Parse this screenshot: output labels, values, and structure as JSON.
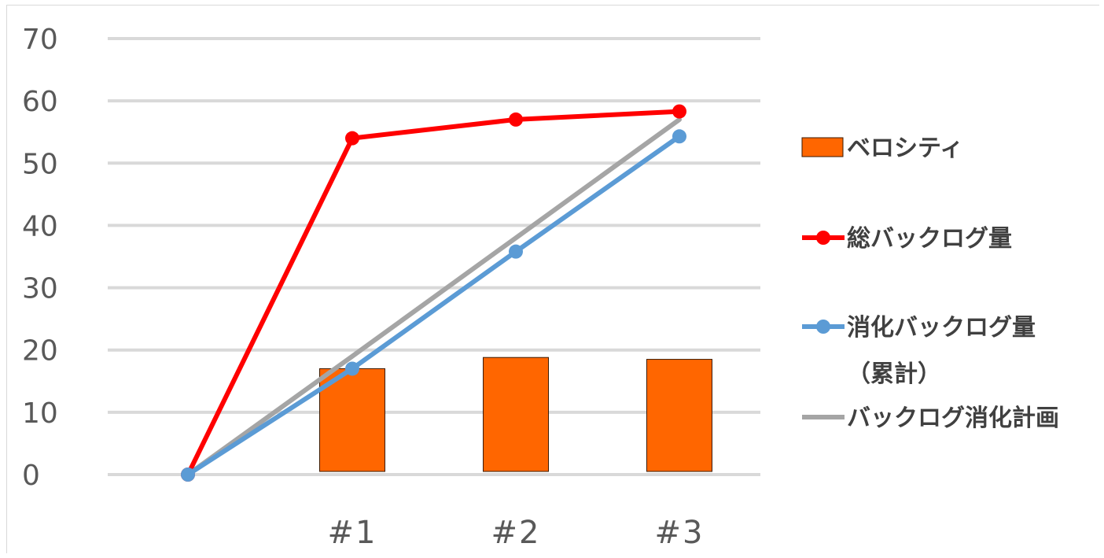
{
  "chart_data": {
    "type": "bar",
    "title": "",
    "xlabel": "",
    "ylabel": "",
    "categories": [
      "",
      "#1",
      "#2",
      "#3"
    ],
    "ylim": [
      0,
      70
    ],
    "yticks": [
      "0",
      "10",
      "20",
      "30",
      "40",
      "50",
      "60",
      "70"
    ],
    "grid": true,
    "legend_position": "right",
    "series": [
      {
        "name": "ベロシティ",
        "type": "bar",
        "color": "#ff6600",
        "values": [
          null,
          17,
          18.8,
          18.5
        ]
      },
      {
        "name": "総バックログ量",
        "type": "line",
        "color": "#ff0000",
        "marker": "circle",
        "values": [
          0,
          54,
          57,
          58.3
        ]
      },
      {
        "name": "消化バックログ量",
        "name_line2": "（累計）",
        "type": "line",
        "color": "#5b9bd5",
        "marker": "circle",
        "values": [
          0,
          17,
          35.8,
          54.3
        ]
      },
      {
        "name": "バックログ消化計画",
        "type": "line",
        "color": "#a5a5a5",
        "marker": "none",
        "values": [
          0,
          19,
          38,
          57
        ]
      }
    ]
  }
}
